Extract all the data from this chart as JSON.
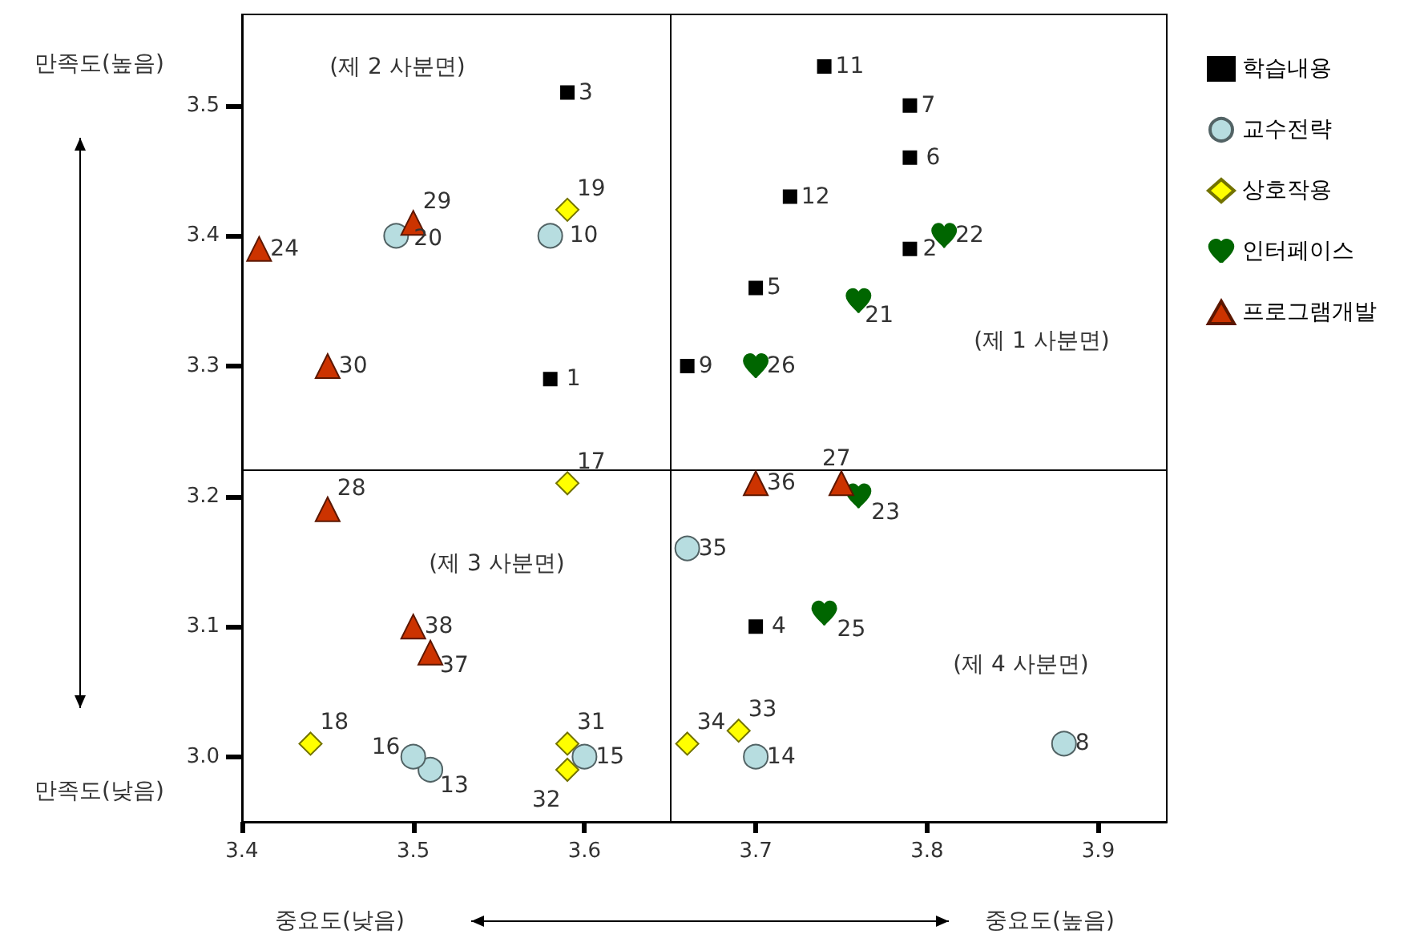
{
  "chart_data": {
    "type": "scatter",
    "xlim": [
      3.4,
      3.94
    ],
    "ylim": [
      2.95,
      3.57
    ],
    "xticks": [
      3.4,
      3.5,
      3.6,
      3.7,
      3.8,
      3.9
    ],
    "yticks": [
      {
        "value": 3.0,
        "label": "3.0"
      },
      {
        "value": 3.1,
        "label": "3.1"
      },
      {
        "value": 3.2,
        "label": "3.2"
      },
      {
        "value": 3.3,
        "label": "3.3"
      },
      {
        "value": 3.4,
        "label": "3.4"
      },
      {
        "value": 3.5,
        "label": "3.5"
      }
    ],
    "grid": false,
    "legend": "right",
    "ref_lines": [
      {
        "axis": "x",
        "value": 3.65
      },
      {
        "axis": "y",
        "value": 3.22
      }
    ],
    "series": [
      {
        "name": "학습내용",
        "color": "#000000",
        "marker": "square",
        "x": [
          3.58,
          3.79,
          3.59,
          3.7,
          3.7,
          3.79,
          3.79,
          3.66,
          3.74,
          3.72
        ],
        "values": [
          3.29,
          3.39,
          3.51,
          3.1,
          3.36,
          3.46,
          3.5,
          3.3,
          3.53,
          3.43
        ]
      },
      {
        "name": "교수전략",
        "color": "#b7dde0",
        "marker": "circle",
        "x": [
          3.88,
          3.58,
          3.51,
          3.7,
          3.6,
          3.5,
          3.49,
          3.66
        ],
        "values": [
          3.01,
          3.4,
          2.99,
          3.0,
          3.0,
          3.0,
          3.4,
          3.16
        ]
      },
      {
        "name": "상호작용",
        "color": "#ffff00",
        "marker": "diamond",
        "x": [
          3.59,
          3.44,
          3.59,
          3.59,
          3.59,
          3.69,
          3.66
        ],
        "values": [
          3.21,
          3.01,
          3.42,
          3.01,
          2.99,
          3.02,
          3.01
        ]
      },
      {
        "name": "인터페이스",
        "color": "#006600",
        "x": [
          3.76,
          3.81,
          3.76,
          3.74,
          3.7
        ],
        "values": [
          3.35,
          3.4,
          3.2,
          3.11,
          3.3
        ]
      },
      {
        "name": "프로그램개발",
        "color": "#cc3300",
        "marker": "triangle",
        "x": [
          3.41,
          3.75,
          3.45,
          3.5,
          3.45,
          3.7,
          3.51,
          3.5
        ],
        "values": [
          3.39,
          3.21,
          3.19,
          3.41,
          3.3,
          3.21,
          3.08,
          3.1
        ]
      }
    ],
    "annotations": [
      {
        "text": "1",
        "x": 3.58,
        "y": 3.29
      },
      {
        "text": "2",
        "x": 3.79,
        "y": 3.39
      },
      {
        "text": "3",
        "x": 3.59,
        "y": 3.51
      },
      {
        "text": "4",
        "x": 3.7,
        "y": 3.1
      },
      {
        "text": "5",
        "x": 3.7,
        "y": 3.36
      },
      {
        "text": "6",
        "x": 3.79,
        "y": 3.46
      },
      {
        "text": "7",
        "x": 3.79,
        "y": 3.5
      },
      {
        "text": "8",
        "x": 3.88,
        "y": 3.01
      },
      {
        "text": "9",
        "x": 3.66,
        "y": 3.3
      },
      {
        "text": "10",
        "x": 3.58,
        "y": 3.4
      },
      {
        "text": "11",
        "x": 3.74,
        "y": 3.53
      },
      {
        "text": "12",
        "x": 3.72,
        "y": 3.43
      },
      {
        "text": "13",
        "x": 3.51,
        "y": 2.99
      },
      {
        "text": "14",
        "x": 3.7,
        "y": 3.0
      },
      {
        "text": "15",
        "x": 3.6,
        "y": 3.0
      },
      {
        "text": "16",
        "x": 3.5,
        "y": 3.0
      },
      {
        "text": "17",
        "x": 3.59,
        "y": 3.21
      },
      {
        "text": "18",
        "x": 3.44,
        "y": 3.01
      },
      {
        "text": "19",
        "x": 3.59,
        "y": 3.42
      },
      {
        "text": "20",
        "x": 3.49,
        "y": 3.4
      },
      {
        "text": "21",
        "x": 3.76,
        "y": 3.35
      },
      {
        "text": "22",
        "x": 3.81,
        "y": 3.4
      },
      {
        "text": "23",
        "x": 3.76,
        "y": 3.2
      },
      {
        "text": "24",
        "x": 3.41,
        "y": 3.39
      },
      {
        "text": "25",
        "x": 3.74,
        "y": 3.11
      },
      {
        "text": "26",
        "x": 3.7,
        "y": 3.3
      },
      {
        "text": "27",
        "x": 3.75,
        "y": 3.21
      },
      {
        "text": "28",
        "x": 3.45,
        "y": 3.19
      },
      {
        "text": "29",
        "x": 3.5,
        "y": 3.41
      },
      {
        "text": "30",
        "x": 3.45,
        "y": 3.3
      },
      {
        "text": "31",
        "x": 3.59,
        "y": 3.01
      },
      {
        "text": "32",
        "x": 3.59,
        "y": 2.99
      },
      {
        "text": "33",
        "x": 3.69,
        "y": 3.02
      },
      {
        "text": "34",
        "x": 3.66,
        "y": 3.01
      },
      {
        "text": "35",
        "x": 3.66,
        "y": 3.16
      },
      {
        "text": "36",
        "x": 3.7,
        "y": 3.21
      },
      {
        "text": "37",
        "x": 3.51,
        "y": 3.08
      },
      {
        "text": "38",
        "x": 3.5,
        "y": 3.1
      },
      "(제 2 사분면)",
      "(제 1 사분면)",
      "(제 3 사분면)",
      "(제 4 사분면)",
      "만족도(높음)",
      "만족도(낮음)",
      "중요도(낮음)",
      "중요도(높음)"
    ]
  }
}
